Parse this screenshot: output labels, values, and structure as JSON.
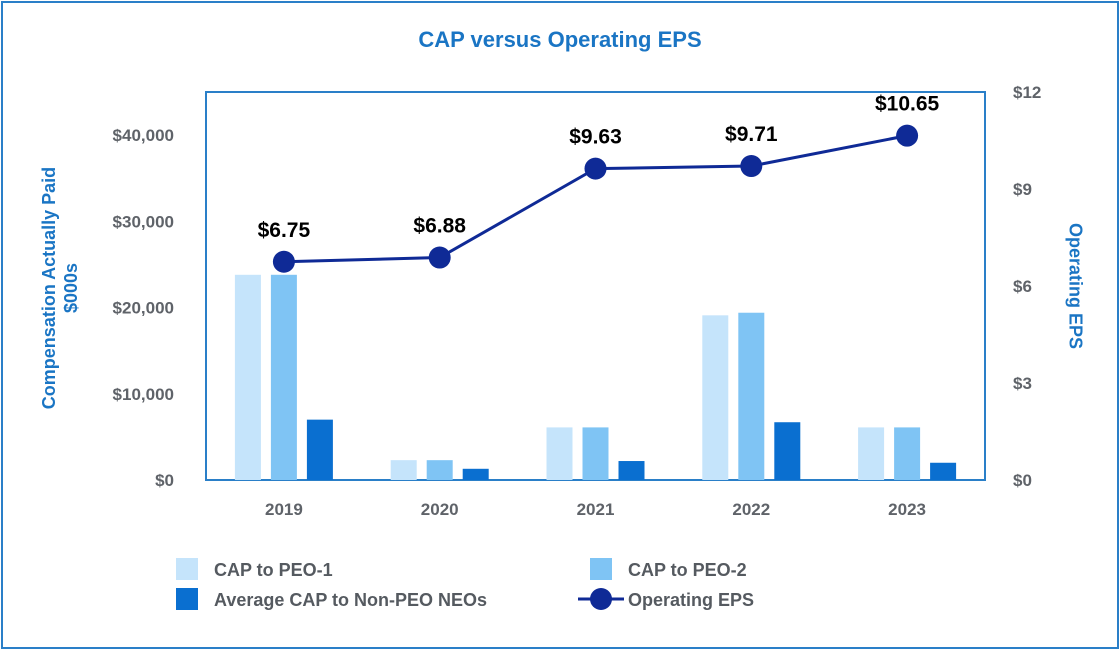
{
  "chart_data": {
    "type": "bar",
    "title": "CAP versus Operating EPS",
    "categories": [
      "2019",
      "2020",
      "2021",
      "2022",
      "2023"
    ],
    "ylabel": "Compensation Actually Paid $000s",
    "ylabel_lines": [
      "Compensation Actually Paid",
      "$000s"
    ],
    "y2label": "Operating EPS",
    "ylim": [
      0,
      45000
    ],
    "y_ticks": [
      0,
      10000,
      20000,
      30000,
      40000
    ],
    "y_tick_labels": [
      "$0",
      "$10,000",
      "$20,000",
      "$30,000",
      "$40,000"
    ],
    "y2lim": [
      0,
      12
    ],
    "y2_ticks": [
      0,
      3,
      6,
      9,
      12
    ],
    "y2_tick_labels": [
      "$0",
      "$3",
      "$6",
      "$9",
      "$12"
    ],
    "series": [
      {
        "name": "CAP to PEO-1",
        "type": "bar",
        "color": "#c5e4fb",
        "values": [
          23800,
          2300,
          6100,
          19100,
          6100
        ]
      },
      {
        "name": "CAP to PEO-2",
        "type": "bar",
        "color": "#7fc4f4",
        "values": [
          23800,
          2300,
          6100,
          19400,
          6100
        ]
      },
      {
        "name": "Average CAP to Non-PEO NEOs",
        "type": "bar",
        "color": "#0a6fd0",
        "values": [
          7000,
          1300,
          2200,
          6700,
          2000
        ]
      },
      {
        "name": "Operating EPS",
        "type": "line",
        "axis": "right",
        "color": "#0f2a96",
        "values": [
          6.75,
          6.88,
          9.63,
          9.71,
          10.65
        ],
        "labels": [
          "$6.75",
          "$6.88",
          "$9.63",
          "$9.71",
          "$10.65"
        ]
      }
    ],
    "legend_position": "bottom",
    "grid": false
  }
}
